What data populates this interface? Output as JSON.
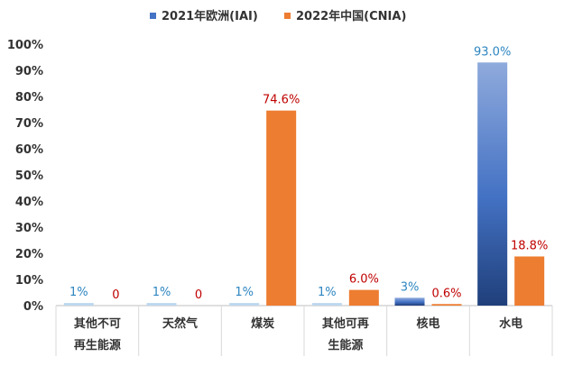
{
  "chart_data": {
    "type": "bar",
    "categories": [
      [
        "其他不可",
        "再生能源"
      ],
      [
        "天然气"
      ],
      [
        "煤炭"
      ],
      [
        "其他可再",
        "生能源"
      ],
      [
        "核电"
      ],
      [
        "水电"
      ]
    ],
    "series": [
      {
        "name": "2021年欧洲(IAI)",
        "values": [
          1,
          1,
          1,
          1,
          3,
          93.0
        ],
        "labels": [
          "1%",
          "1%",
          "1%",
          "1%",
          "3%",
          "93.0%"
        ],
        "color": "#4472C4",
        "label_color": "#2E86C1"
      },
      {
        "name": "2022年中国(CNIA)",
        "values": [
          0,
          0,
          74.6,
          6.0,
          0.6,
          18.8
        ],
        "labels": [
          "0",
          "0",
          "74.6%",
          "6.0%",
          "0.6%",
          "18.8%"
        ],
        "color": "#ED7D31",
        "label_color": "#C00000"
      }
    ],
    "y_ticks": [
      "0%",
      "10%",
      "20%",
      "30%",
      "40%",
      "50%",
      "60%",
      "70%",
      "80%",
      "90%",
      "100%"
    ],
    "ylim": [
      0,
      100
    ],
    "legend_position": "top-center",
    "grid": false
  }
}
